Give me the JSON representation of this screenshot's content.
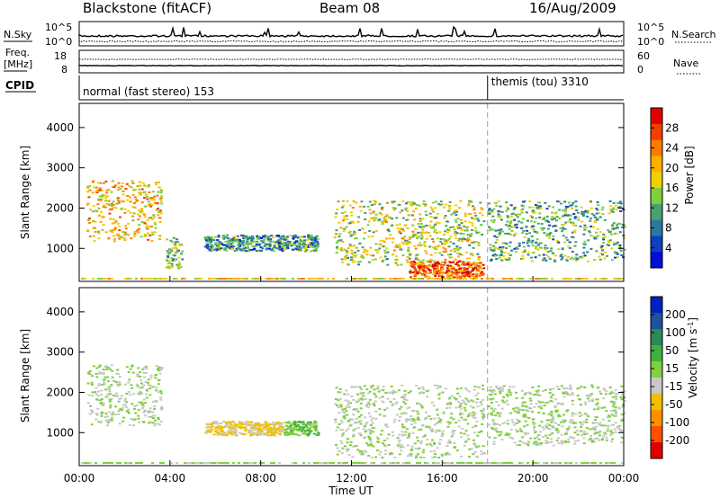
{
  "header": {
    "station": "Blackstone (fitACF)",
    "beam": "Beam 08",
    "date": "16/Aug/2009"
  },
  "strip": {
    "nsky_label": "N.Sky",
    "nsky_ticks": [
      "10^5",
      "10^0"
    ],
    "nsearch_label": "N.Search",
    "nsearch_ticks": [
      "10^5",
      "10^0"
    ],
    "freq_label_1": "Freq.",
    "freq_label_2": "[MHz]",
    "freq_ticks": [
      "18",
      "8"
    ],
    "nave_label": "Nave",
    "nave_ticks": [
      "60",
      "0"
    ],
    "cpid_label": "CPID",
    "modes": [
      {
        "name": "normal (fast stereo) 153",
        "start_hour": 0
      },
      {
        "name": "themis (tou) 3310",
        "start_hour": 18
      }
    ]
  },
  "chart_data": [
    {
      "type": "heatmap",
      "panel": "power",
      "ylabel": "Slant Range [km]",
      "yticks": [
        "4000",
        "3000",
        "2000",
        "1000"
      ],
      "ylim": [
        180,
        4600
      ],
      "xlim": [
        0,
        24
      ],
      "colorbar_label": "Power [dB]",
      "colorbar_ticks": [
        "28",
        "24",
        "20",
        "16",
        "12",
        "8",
        "4"
      ],
      "colorbar_colors": [
        "#e00000",
        "#f04000",
        "#ff7a00",
        "#ffae00",
        "#f0d000",
        "#7ed040",
        "#4aa070",
        "#2a7aa0",
        "#1040c0",
        "#0010d8"
      ],
      "echo_regions": [
        {
          "x": [
            0.3,
            3.6
          ],
          "range_km": [
            1200,
            2700
          ],
          "level_db": 20
        },
        {
          "x": [
            3.8,
            4.5
          ],
          "range_km": [
            500,
            1300
          ],
          "level_db": 14
        },
        {
          "x": [
            5.5,
            10.5
          ],
          "range_km": [
            950,
            1350
          ],
          "level_db": 10
        },
        {
          "x": [
            11.2,
            17.8
          ],
          "range_km": [
            600,
            2200
          ],
          "level_db": 16
        },
        {
          "x": [
            14.5,
            17.8
          ],
          "range_km": [
            300,
            700
          ],
          "level_db": 26
        },
        {
          "x": [
            18.0,
            24.0
          ],
          "range_km": [
            700,
            2200
          ],
          "level_db": 12
        }
      ]
    },
    {
      "type": "heatmap",
      "panel": "velocity",
      "xlabel": "Time UT",
      "ylabel": "Slant Range [km]",
      "yticks": [
        "4000",
        "3000",
        "2000",
        "1000"
      ],
      "xticks": [
        "00:00",
        "04:00",
        "08:00",
        "12:00",
        "16:00",
        "20:00",
        "00:00"
      ],
      "ylim": [
        180,
        4600
      ],
      "xlim": [
        0,
        24
      ],
      "colorbar_label": "Velocity [m s^-1]",
      "colorbar_ticks": [
        "200",
        "100",
        "50",
        "15",
        "-15",
        "-50",
        "-100",
        "-200"
      ],
      "colorbar_colors": [
        "#0020c0",
        "#2050a0",
        "#2a8a5a",
        "#40b040",
        "#80d040",
        "#c8c8c8",
        "#f0c000",
        "#ff9000",
        "#ff5000",
        "#e00000"
      ],
      "echo_regions": [
        {
          "x": [
            0.3,
            3.6
          ],
          "range_km": [
            1200,
            2700
          ],
          "velocity": 0
        },
        {
          "x": [
            5.5,
            9.0
          ],
          "range_km": [
            950,
            1300
          ],
          "velocity": -60
        },
        {
          "x": [
            9.0,
            10.5
          ],
          "range_km": [
            950,
            1300
          ],
          "velocity": 40
        },
        {
          "x": [
            11.2,
            17.8
          ],
          "range_km": [
            400,
            2200
          ],
          "velocity": 0
        },
        {
          "x": [
            18.0,
            24.0
          ],
          "range_km": [
            700,
            2200
          ],
          "velocity": 0
        }
      ]
    }
  ]
}
